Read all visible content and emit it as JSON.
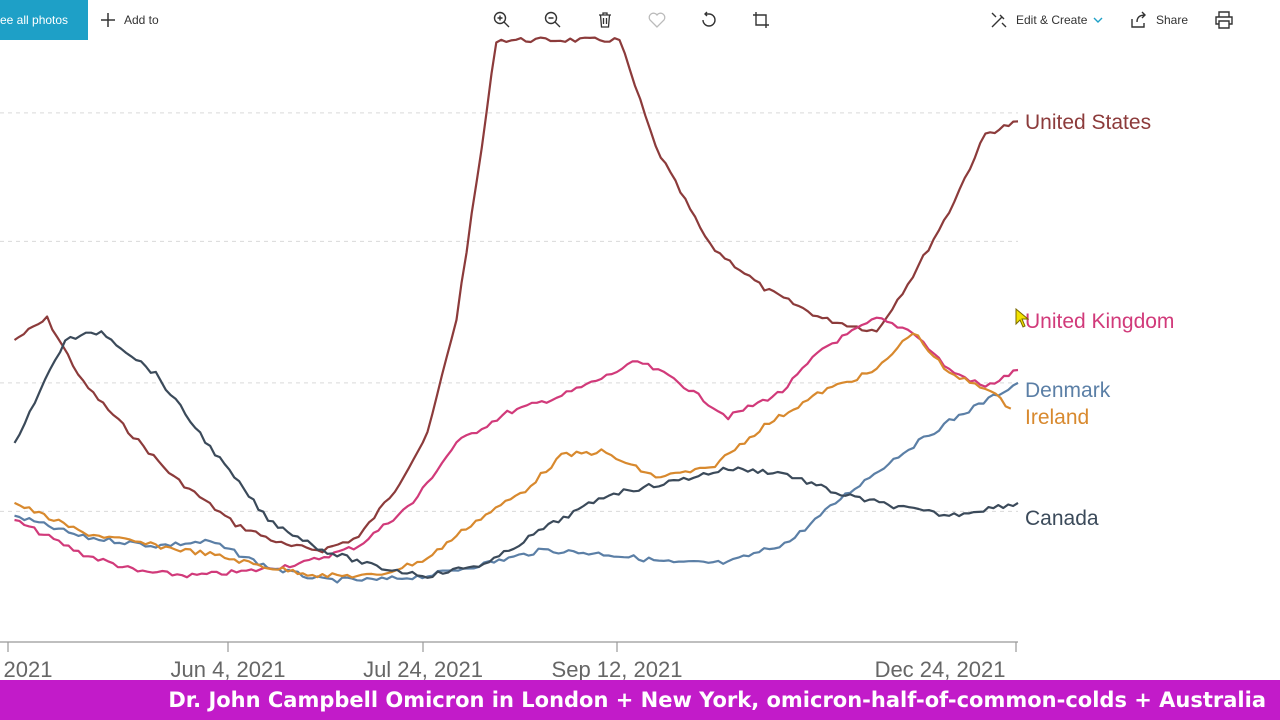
{
  "toolbar": {
    "see_all_label": "See all photos",
    "add_to_label": "Add to",
    "edit_create_label": "Edit & Create",
    "share_label": "Share",
    "icons": [
      "zoom-in-icon",
      "zoom-out-icon",
      "delete-icon",
      "favorite-icon",
      "rotate-icon",
      "crop-icon",
      "edit-create-icon",
      "share-icon",
      "print-icon"
    ]
  },
  "chart_data": {
    "type": "line",
    "x_tick_labels": [
      "2021",
      "Jun 4, 2021",
      "Jul 24, 2021",
      "Sep 12, 2021",
      "Dec 24, 2021"
    ],
    "grid": true,
    "series": [
      {
        "name": "United States",
        "color": "#8c3b3b",
        "values": [
          [
            "2021-04-01",
            70
          ],
          [
            "2021-04-10",
            75
          ],
          [
            "2021-04-20",
            60
          ],
          [
            "2021-05-01",
            50
          ],
          [
            "2021-05-15",
            38
          ],
          [
            "2021-06-01",
            27
          ],
          [
            "2021-06-15",
            22
          ],
          [
            "2021-06-25",
            21
          ],
          [
            "2021-07-05",
            24
          ],
          [
            "2021-07-15",
            35
          ],
          [
            "2021-07-24",
            48
          ],
          [
            "2021-08-01",
            75
          ],
          [
            "2021-08-08",
            115
          ],
          [
            "2021-08-12",
            140
          ],
          [
            "2021-09-15",
            140
          ],
          [
            "2021-09-25",
            115
          ],
          [
            "2021-10-10",
            92
          ],
          [
            "2021-10-25",
            82
          ],
          [
            "2021-11-10",
            75
          ],
          [
            "2021-11-25",
            72
          ],
          [
            "2021-12-05",
            85
          ],
          [
            "2021-12-15",
            100
          ],
          [
            "2021-12-25",
            118
          ],
          [
            "2022-01-03",
            121
          ]
        ]
      },
      {
        "name": "United Kingdom",
        "color": "#d13a7a",
        "values": [
          [
            "2021-04-01",
            28
          ],
          [
            "2021-04-20",
            20
          ],
          [
            "2021-05-05",
            16
          ],
          [
            "2021-05-20",
            15
          ],
          [
            "2021-06-04",
            16
          ],
          [
            "2021-06-20",
            18
          ],
          [
            "2021-07-05",
            22
          ],
          [
            "2021-07-20",
            32
          ],
          [
            "2021-08-01",
            46
          ],
          [
            "2021-08-15",
            53
          ],
          [
            "2021-08-30",
            57
          ],
          [
            "2021-09-10",
            61
          ],
          [
            "2021-09-20",
            65
          ],
          [
            "2021-09-30",
            61
          ],
          [
            "2021-10-15",
            52
          ],
          [
            "2021-10-30",
            58
          ],
          [
            "2021-11-10",
            68
          ],
          [
            "2021-11-25",
            75
          ],
          [
            "2021-12-05",
            72
          ],
          [
            "2021-12-15",
            63
          ],
          [
            "2021-12-25",
            59
          ],
          [
            "2022-01-03",
            63
          ]
        ]
      },
      {
        "name": "Denmark",
        "color": "#5b7fa6",
        "values": [
          [
            "2021-04-01",
            29
          ],
          [
            "2021-04-20",
            24
          ],
          [
            "2021-05-10",
            22
          ],
          [
            "2021-05-25",
            23
          ],
          [
            "2021-06-10",
            17
          ],
          [
            "2021-06-25",
            14
          ],
          [
            "2021-07-10",
            14
          ],
          [
            "2021-07-24",
            15
          ],
          [
            "2021-08-10",
            18
          ],
          [
            "2021-08-25",
            21
          ],
          [
            "2021-09-12",
            20
          ],
          [
            "2021-09-30",
            18
          ],
          [
            "2021-10-15",
            18
          ],
          [
            "2021-11-01",
            23
          ],
          [
            "2021-11-15",
            33
          ],
          [
            "2021-12-01",
            43
          ],
          [
            "2021-12-15",
            51
          ],
          [
            "2022-01-03",
            60
          ]
        ]
      },
      {
        "name": "Ireland",
        "color": "#d8892e",
        "values": [
          [
            "2021-04-01",
            32
          ],
          [
            "2021-04-20",
            25
          ],
          [
            "2021-05-10",
            22
          ],
          [
            "2021-05-25",
            20
          ],
          [
            "2021-06-10",
            17
          ],
          [
            "2021-06-25",
            15
          ],
          [
            "2021-07-10",
            15
          ],
          [
            "2021-07-24",
            19
          ],
          [
            "2021-08-05",
            27
          ],
          [
            "2021-08-20",
            35
          ],
          [
            "2021-08-30",
            43
          ],
          [
            "2021-09-10",
            44
          ],
          [
            "2021-09-25",
            38
          ],
          [
            "2021-10-10",
            40
          ],
          [
            "2021-10-25",
            50
          ],
          [
            "2021-11-10",
            58
          ],
          [
            "2021-11-25",
            63
          ],
          [
            "2021-12-05",
            72
          ],
          [
            "2021-12-15",
            62
          ],
          [
            "2021-12-25",
            59
          ],
          [
            "2022-01-01",
            54
          ]
        ]
      },
      {
        "name": "Canada",
        "color": "#3b4a5a",
        "values": [
          [
            "2021-04-01",
            46
          ],
          [
            "2021-04-15",
            70
          ],
          [
            "2021-04-25",
            72
          ],
          [
            "2021-05-10",
            62
          ],
          [
            "2021-05-25",
            45
          ],
          [
            "2021-06-10",
            28
          ],
          [
            "2021-06-25",
            21
          ],
          [
            "2021-07-10",
            17
          ],
          [
            "2021-07-24",
            15
          ],
          [
            "2021-08-10",
            18
          ],
          [
            "2021-08-25",
            26
          ],
          [
            "2021-09-12",
            34
          ],
          [
            "2021-09-30",
            37
          ],
          [
            "2021-10-15",
            40
          ],
          [
            "2021-10-30",
            39
          ],
          [
            "2021-11-15",
            34
          ],
          [
            "2021-12-01",
            31
          ],
          [
            "2021-12-15",
            29
          ],
          [
            "2022-01-03",
            32
          ]
        ]
      }
    ]
  },
  "caption": "Dr. John Campbell Omicron in London + New York, omicron-half-of-common-colds + Australia"
}
